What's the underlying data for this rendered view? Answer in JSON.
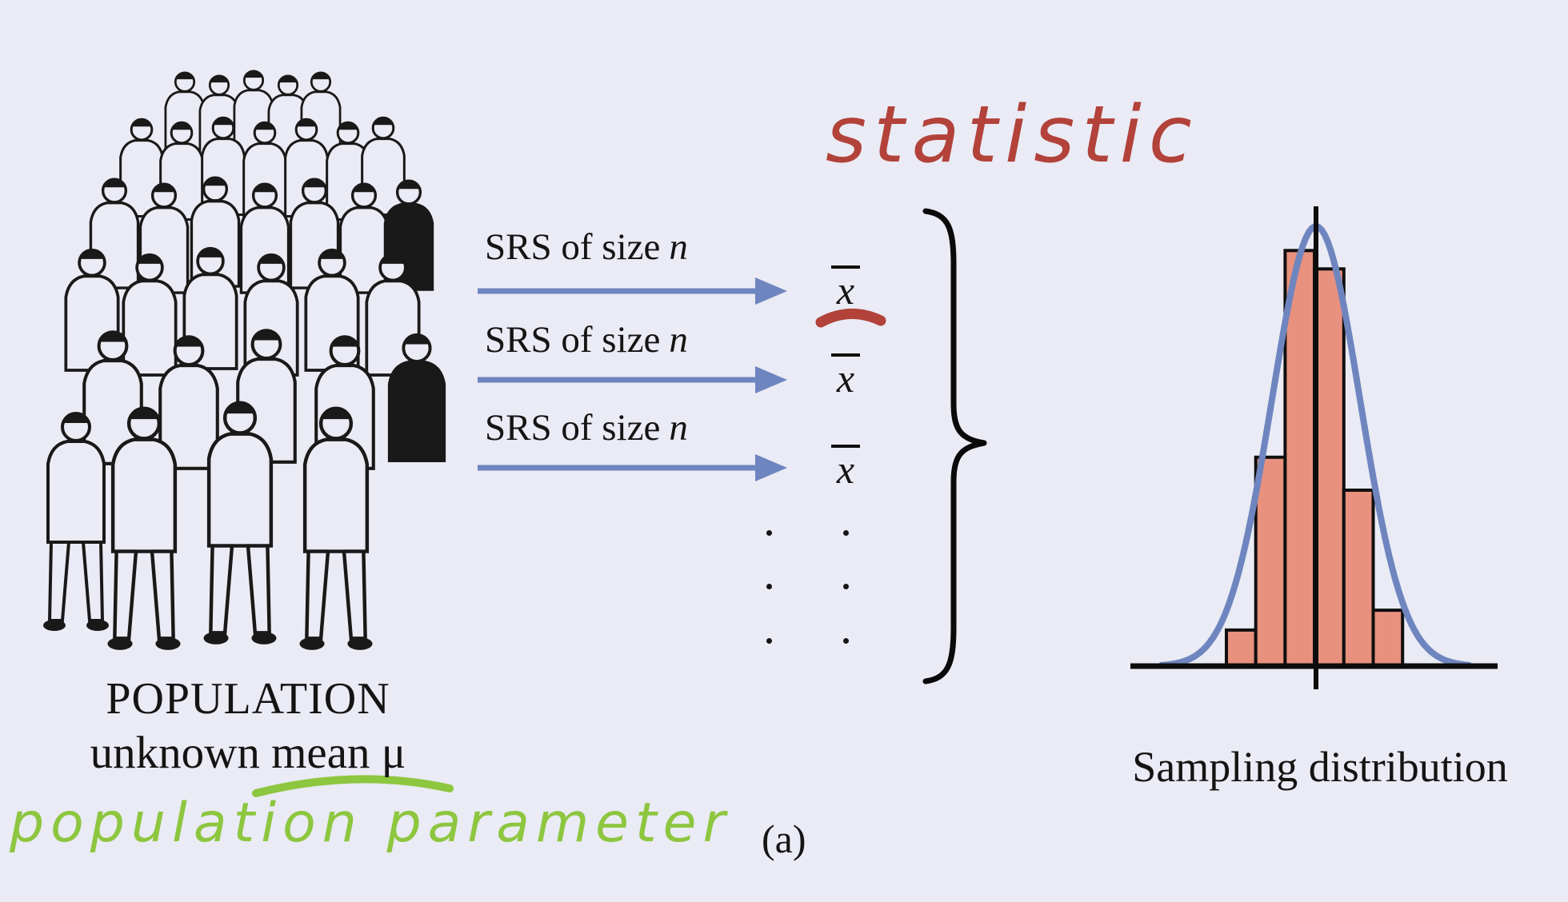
{
  "page": {
    "background_color": "#eaebf4",
    "caption": "(a)"
  },
  "population": {
    "title": "POPULATION",
    "subtitle": "unknown mean μ",
    "handwritten_annotation": "population parameter",
    "annotation_color": "#8dc63f"
  },
  "sampling": {
    "handwritten_annotation": "statistic",
    "annotation_color": "#b2423a",
    "statistic_symbol": "x̄",
    "arrow_color": "#6e85bf",
    "rows": [
      {
        "label": "SRS of size",
        "var": "n",
        "statistic": "x"
      },
      {
        "label": "SRS of size",
        "var": "n",
        "statistic": "x"
      },
      {
        "label": "SRS of size",
        "var": "n",
        "statistic": "x"
      }
    ],
    "ellipsis_rows": 3
  },
  "chart_data": {
    "type": "histogram",
    "title": "Sampling distribution",
    "description": "Histogram of sample means with an overlaid normal curve centered at the population mean; axes carry no numeric labels",
    "bars_relative_heights": [
      0.082,
      0.475,
      0.945,
      0.903,
      0.4,
      0.127
    ],
    "curve": {
      "shape": "normal",
      "color": "#6e85bf"
    },
    "bar_fill": "#e8917f",
    "bar_outline": "#0f0f0f",
    "axis_labels": "none",
    "grid": false
  }
}
